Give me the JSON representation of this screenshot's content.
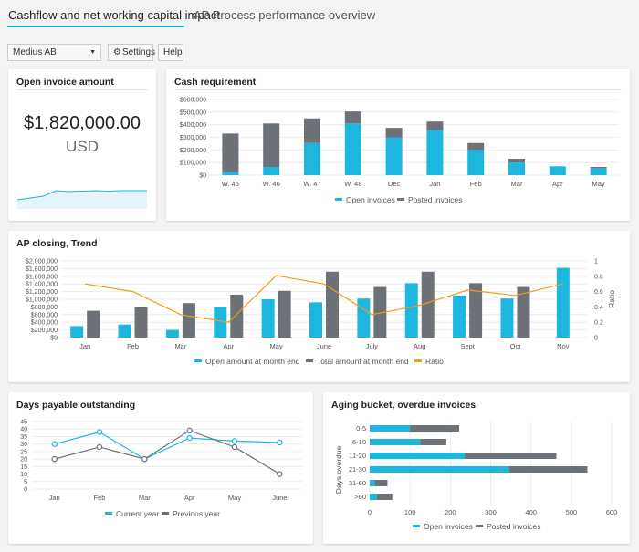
{
  "tabs": [
    {
      "label": "Cashflow and net working capital impact",
      "active": true
    },
    {
      "label": "AP Process performance overview",
      "active": false
    }
  ],
  "toolbar": {
    "company": "Medius AB",
    "settings_label": "Settings",
    "help_label": "Help"
  },
  "colors": {
    "accent": "#1ab0d8",
    "cyan": "#1cb6df",
    "gray": "#6c7278",
    "orange": "#f39c12"
  },
  "open_invoice": {
    "title": "Open invoice amount",
    "amount": "$1,820,000.00",
    "currency": "USD"
  },
  "cash_requirement": {
    "title": "Cash requirement",
    "legend": [
      "Open invoices",
      "Posted invoices"
    ]
  },
  "ap_closing": {
    "title": "AP closing, Trend",
    "legend": [
      "Open amount at month end",
      "Total amount at month end",
      "Ratio"
    ],
    "ratio_axis_label": "Ratio"
  },
  "dpo": {
    "title": "Days payable outstanding",
    "legend": [
      "Current year",
      "Previous year"
    ]
  },
  "aging": {
    "title": "Aging bucket, overdue invoices",
    "ylabel": "Days overdue",
    "legend": [
      "Open invoices",
      "Posted invoices"
    ]
  },
  "chart_data": [
    {
      "id": "open-invoice-sparkline",
      "type": "area",
      "values": [
        10,
        12,
        14,
        20,
        19,
        19.5,
        20,
        19.5,
        20,
        20,
        20
      ],
      "ylim": [
        0,
        40
      ]
    },
    {
      "id": "cash-requirement",
      "type": "bar",
      "stacked": true,
      "title": "Cash requirement",
      "categories": [
        "W. 45",
        "W. 46",
        "W. 47",
        "W. 48",
        "Dec",
        "Jan",
        "Feb",
        "Mar",
        "Apr",
        "May"
      ],
      "series": [
        {
          "name": "Open invoices",
          "values": [
            25000,
            65000,
            255000,
            410000,
            300000,
            355000,
            200000,
            100000,
            70000,
            55000
          ]
        },
        {
          "name": "Posted invoices",
          "values": [
            305000,
            345000,
            195000,
            95000,
            75000,
            70000,
            55000,
            30000,
            0,
            10000
          ]
        }
      ],
      "yticks": [
        "$0",
        "$100,000",
        "$200,000",
        "$300,000",
        "$400,000",
        "$500,000",
        "$600,000"
      ],
      "ylim": [
        0,
        600000
      ]
    },
    {
      "id": "ap-closing",
      "type": "bar",
      "title": "AP closing, Trend",
      "categories": [
        "Jan",
        "Feb",
        "Mar",
        "Apr",
        "May",
        "June",
        "July",
        "Aug",
        "Sept",
        "Oct",
        "Nov"
      ],
      "series": [
        {
          "name": "Open amount at month end",
          "values": [
            300000,
            340000,
            200000,
            800000,
            1000000,
            920000,
            1020000,
            1420000,
            1100000,
            1020000,
            1820000
          ]
        },
        {
          "name": "Total amount at month end",
          "values": [
            700000,
            800000,
            900000,
            1120000,
            1220000,
            1720000,
            1320000,
            1720000,
            1420000,
            1320000,
            null
          ]
        },
        {
          "name": "Ratio",
          "axis": "right",
          "values": [
            0.7,
            0.6,
            0.3,
            0.2,
            0.81,
            0.7,
            0.3,
            0.42,
            0.62,
            0.55,
            0.7
          ]
        }
      ],
      "yticks": [
        "$0",
        "$200,000",
        "$400,000",
        "$600,000",
        "$800,000",
        "$1,000,000",
        "$1,200,000",
        "$1,400,000",
        "$1,600,000",
        "$1,800,000",
        "$2,000,000"
      ],
      "ylim": [
        0,
        2000000
      ],
      "y2ticks": [
        "0",
        "0.2",
        "0.4",
        "0.6",
        "0.8",
        "1"
      ],
      "y2lim": [
        0,
        1
      ],
      "y2label": "Ratio"
    },
    {
      "id": "days-payable-outstanding",
      "type": "line",
      "title": "Days payable outstanding",
      "categories": [
        "Jan",
        "Feb",
        "Mar",
        "Apr",
        "May",
        "June"
      ],
      "series": [
        {
          "name": "Current year",
          "values": [
            30,
            38,
            20,
            34,
            32,
            31
          ]
        },
        {
          "name": "Previous year",
          "values": [
            20,
            28,
            20,
            39,
            28,
            10
          ]
        }
      ],
      "yticks": [
        "0",
        "5",
        "10",
        "15",
        "20",
        "25",
        "30",
        "35",
        "40",
        "45"
      ],
      "ylim": [
        0,
        45
      ]
    },
    {
      "id": "aging-bucket",
      "type": "bar",
      "orientation": "horizontal",
      "stacked": true,
      "title": "Aging bucket, overdue invoices",
      "categories": [
        "0-5",
        "6-10",
        "11-20",
        "21-30",
        "31-60",
        ">60"
      ],
      "series": [
        {
          "name": "Open invoices",
          "values": [
            100,
            125,
            235,
            345,
            12,
            18
          ]
        },
        {
          "name": "Posted invoices",
          "values": [
            122,
            65,
            228,
            195,
            32,
            38
          ]
        }
      ],
      "xticks": [
        "0",
        "100",
        "200",
        "300",
        "400",
        "500",
        "600"
      ],
      "xlim": [
        0,
        600
      ],
      "ylabel": "Days overdue"
    }
  ]
}
